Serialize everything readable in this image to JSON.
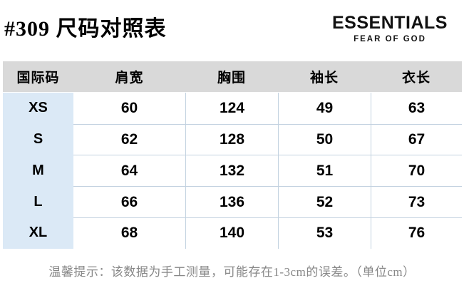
{
  "page": {
    "title": "#309 尺码对照表",
    "note": "温馨提示：该数据为手工测量，可能存在1-3cm的误差。（单位cm）"
  },
  "brand": {
    "name": "ESSENTIALS",
    "subtitle": "FEAR OF GOD"
  },
  "size_table": {
    "columns": [
      "国际码",
      "肩宽",
      "胸围",
      "袖长",
      "衣长"
    ],
    "rows": [
      {
        "size": "XS",
        "values": [
          "60",
          "124",
          "49",
          "63"
        ]
      },
      {
        "size": "S",
        "values": [
          "62",
          "128",
          "50",
          "67"
        ]
      },
      {
        "size": "M",
        "values": [
          "64",
          "132",
          "51",
          "70"
        ]
      },
      {
        "size": "L",
        "values": [
          "66",
          "136",
          "52",
          "73"
        ]
      },
      {
        "size": "XL",
        "values": [
          "68",
          "140",
          "53",
          "76"
        ]
      }
    ],
    "unit": "cm"
  },
  "colors": {
    "header_bg": "#d9d9d9",
    "size_column_bg": "#dbe9f6",
    "cell_border": "#c3d2e0",
    "note_text": "#878787",
    "text": "#000000"
  }
}
